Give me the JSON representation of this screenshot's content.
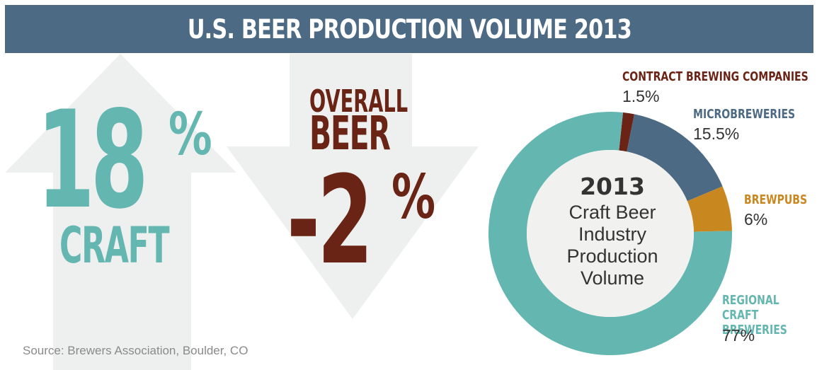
{
  "title": "U.S. BEER PRODUCTION VOLUME 2013",
  "craft": {
    "value": "18",
    "unit": "%",
    "label": "CRAFT"
  },
  "overall": {
    "line1": "OVERALL",
    "line2": "BEER",
    "value": "-2",
    "unit": "%"
  },
  "source": "Source: Brewers Association, Boulder, CO",
  "colors": {
    "header": "#4d6a84",
    "craft": "#64b6b0",
    "overall": "#6a2415",
    "arrow": "#eef0ef",
    "contract": "#6b2316",
    "micro": "#4d6a84",
    "brewpubs": "#c8871f",
    "regional": "#64b6b0",
    "donut_center": "#f1f1f0"
  },
  "chart_data": {
    "type": "pie",
    "center_label": {
      "year": "2013",
      "caption": "Craft Beer Industry Production Volume"
    },
    "slices": [
      {
        "name": "CONTRACT BREWING COMPANIES",
        "value": 1.5,
        "label": "1.5%",
        "color": "#6b2316"
      },
      {
        "name": "MICROBREWERIES",
        "value": 15.5,
        "label": "15.5%",
        "color": "#4d6a84"
      },
      {
        "name": "BREWPUBS",
        "value": 6,
        "label": "6%",
        "color": "#c8871f"
      },
      {
        "name": "REGIONAL CRAFT BREWERIES",
        "value": 77,
        "label": "77%",
        "color": "#64b6b0"
      }
    ]
  }
}
